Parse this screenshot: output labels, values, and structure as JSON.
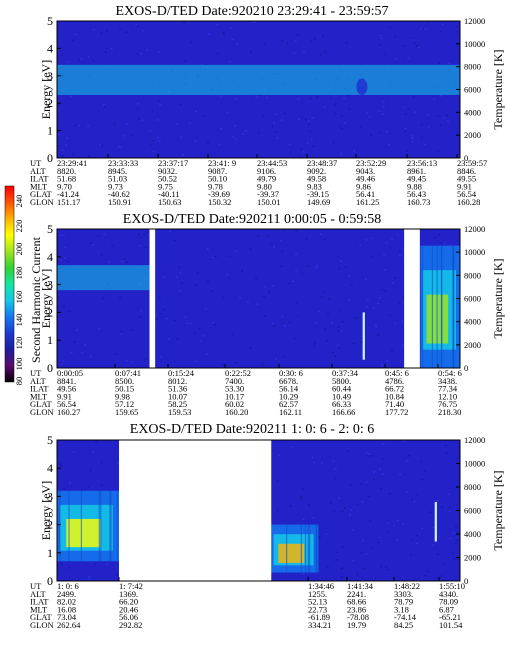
{
  "colors": {
    "background": "#ffffff",
    "spectrogram_base": "#2222c8",
    "data_gap": "#ffffff"
  },
  "colorbar": {
    "label": "Second Harmonic Current",
    "ticks": [
      "240",
      "220",
      "200",
      "180",
      "160",
      "140",
      "120",
      "100",
      "80"
    ],
    "range": [
      80,
      240
    ],
    "colors": [
      "#000000",
      "#5a0a6e",
      "#1e1ea0",
      "#1e3cd2",
      "#1478f0",
      "#14c8e6",
      "#14e6a0",
      "#32d232",
      "#a0e61e",
      "#ffff00",
      "#ffb400",
      "#ff5000",
      "#ff0000"
    ]
  },
  "panels": [
    {
      "title": "EXOS-D/TED   Date:920210  23:29:41 - 23:59:57",
      "ylabel": "Energy [eV]",
      "y2label": "Temperature [K]",
      "yticks": [
        "0",
        "1",
        "2",
        "3",
        "4",
        "5"
      ],
      "y2ticks": [
        "0",
        "2000",
        "4000",
        "6000",
        "8000",
        "10000",
        "12000"
      ],
      "row_labels": [
        "UT",
        "ALT",
        "ILAT",
        "MLT",
        "GLAT",
        "GLON"
      ],
      "columns": [
        [
          "23:29:41",
          "8820.",
          "51.68",
          "9.70",
          "-41.24",
          "151.17"
        ],
        [
          "23:33:33",
          "8945.",
          "51.03",
          "9.73",
          "-40.62",
          "150.91"
        ],
        [
          "23:37:17",
          "9032.",
          "50.52",
          "9.75",
          "-40.11",
          "150.63"
        ],
        [
          "23:41: 9",
          "9087.",
          "50.10",
          "9.78",
          "-39.69",
          "150.32"
        ],
        [
          "23:44:53",
          "9106.",
          "49.79",
          "9.80",
          "-39.37",
          "150.01"
        ],
        [
          "23:48:37",
          "9092.",
          "49.58",
          "9.83",
          "-39.15",
          "149.69"
        ],
        [
          "23:52:29",
          "9043.",
          "49.46",
          "9.86",
          "56.41",
          "161.25"
        ],
        [
          "23:56:13",
          "8961.",
          "49.45",
          "9.88",
          "56.43",
          "160.73"
        ],
        [
          "23:59:57",
          "8846.",
          "49.55",
          "9.91",
          "56.54",
          "160.28"
        ]
      ]
    },
    {
      "title": "EXOS-D/TED   Date:920211  0:00:05 - 0:59:58",
      "ylabel": "Energy [eV]",
      "y2label": "Temperature [K]",
      "yticks": [
        "0",
        "1",
        "2",
        "3",
        "4",
        "5"
      ],
      "y2ticks": [
        "0",
        "2000",
        "4000",
        "6000",
        "8000",
        "10000",
        "12000"
      ],
      "row_labels": [
        "UT",
        "ALT",
        "ILAT",
        "MLT",
        "GLAT",
        "GLON"
      ],
      "columns": [
        [
          "0:00:05",
          "8841.",
          "49.56",
          "9.91",
          "56.54",
          "160.27"
        ],
        [
          "0:07:41",
          "8500.",
          "50.15",
          "9.98",
          "57.12",
          "159.65"
        ],
        [
          "0:15:24",
          "8012.",
          "51.36",
          "10.07",
          "58.25",
          "159.53"
        ],
        [
          "0:22:52",
          "7400.",
          "53.30",
          "10.17",
          "60.02",
          "160.20"
        ],
        [
          "0:30: 6",
          "6678.",
          "56.14",
          "10.29",
          "62.57",
          "162.11"
        ],
        [
          "0:37:34",
          "5800.",
          "60.44",
          "10.49",
          "66.33",
          "166.66"
        ],
        [
          "0:45: 6",
          "4786.",
          "66.72",
          "10.84",
          "71.40",
          "177.72"
        ],
        [
          "0:54: 6",
          "3438.",
          "77.34",
          "12.10",
          "76.75",
          "218.30"
        ]
      ]
    },
    {
      "title": "EXOS-D/TED   Date:920211  1: 0: 6 - 2: 0: 6",
      "ylabel": "Energy [eV]",
      "y2label": "Temperature [K]",
      "yticks": [
        "0",
        "1",
        "2",
        "3",
        "4",
        "5"
      ],
      "y2ticks": [
        "0",
        "2000",
        "4000",
        "6000",
        "8000",
        "10000",
        "12000"
      ],
      "row_labels": [
        "UT",
        "ALT",
        "ILAT",
        "MLT",
        "GLAT",
        "GLON"
      ],
      "columns": [
        [
          "1: 0: 6",
          "2499.",
          "82.02",
          "16.08",
          "73.04",
          "262.64"
        ],
        [
          "1: 7:42",
          "1369.",
          "66.20",
          "20.46",
          "56.06",
          "292.82"
        ],
        [
          "1:34:46",
          "1255.",
          "52.13",
          "22.73",
          "-61.89",
          "334.21"
        ],
        [
          "1:41:34",
          "2241.",
          "68.66",
          "23.86",
          "-78.08",
          "19.79"
        ],
        [
          "1:48:22",
          "3303.",
          "78.79",
          "3.18",
          "-74.14",
          "84.25"
        ],
        [
          "1:55:10",
          "4340.",
          "78.09",
          "6.87",
          "-65.21",
          "101.54"
        ]
      ]
    }
  ],
  "chart_data": [
    {
      "type": "heatmap",
      "title": "EXOS-D/TED   Date:920210  23:29:41 - 23:59:57",
      "xlabel": "UT",
      "ylabel": "Energy [eV]",
      "y2label": "Temperature [K]",
      "ylim": [
        0,
        5
      ],
      "y2lim": [
        0,
        12000
      ],
      "x": [
        "23:29:41",
        "23:33:33",
        "23:37:17",
        "23:41: 9",
        "23:44:53",
        "23:48:37",
        "23:52:29",
        "23:56:13",
        "23:59:57"
      ],
      "colorbar": {
        "label": "Second Harmonic Current",
        "range": [
          80,
          240
        ]
      },
      "data_gaps": [],
      "features": [
        {
          "type": "band",
          "energy": [
            2.3,
            3.4
          ],
          "x_range": [
            "23:29:41",
            "23:59:57"
          ],
          "level": 150
        },
        {
          "type": "spot",
          "energy": [
            2.3,
            2.9
          ],
          "x_range": [
            "23:52:10",
            "23:53:00"
          ],
          "level": 120
        }
      ]
    },
    {
      "type": "heatmap",
      "title": "EXOS-D/TED   Date:920211  0:00:05 - 0:59:58",
      "xlabel": "UT",
      "ylabel": "Energy [eV]",
      "y2label": "Temperature [K]",
      "ylim": [
        0,
        5
      ],
      "y2lim": [
        0,
        12000
      ],
      "x": [
        "0:00:05",
        "0:07:41",
        "0:15:24",
        "0:22:52",
        "0:30: 6",
        "0:37:34",
        "0:45: 6",
        "0:54: 6"
      ],
      "colorbar": {
        "label": "Second Harmonic Current",
        "range": [
          80,
          240
        ]
      },
      "data_gaps": [
        [
          "0:13:50",
          "0:14:40"
        ],
        [
          "0:51:40",
          "0:54:00"
        ]
      ],
      "features": [
        {
          "type": "band",
          "energy": [
            2.8,
            3.7
          ],
          "x_range": [
            "0:00:05",
            "0:13:50"
          ],
          "level": 150
        },
        {
          "type": "line",
          "energy": [
            0.3,
            2.0
          ],
          "x_range": [
            "0:45:30",
            "0:45:50"
          ],
          "level": 170
        },
        {
          "type": "enhancement",
          "energy": [
            0.0,
            4.4
          ],
          "x_range": [
            "0:54:06",
            "0:59:58"
          ],
          "level": 190
        }
      ]
    },
    {
      "type": "heatmap",
      "title": "EXOS-D/TED   Date:920211  1: 0: 6 - 2: 0: 6",
      "xlabel": "UT",
      "ylabel": "Energy [eV]",
      "y2label": "Temperature [K]",
      "ylim": [
        0,
        5
      ],
      "y2lim": [
        0,
        12000
      ],
      "x": [
        "1: 0: 6",
        "1: 7:42",
        "1:34:46",
        "1:41:34",
        "1:48:22",
        "1:55:10"
      ],
      "colorbar": {
        "label": "Second Harmonic Current",
        "range": [
          80,
          240
        ]
      },
      "data_gaps": [
        [
          "1:09:20",
          "1:32:00"
        ]
      ],
      "features": [
        {
          "type": "enhancement",
          "energy": [
            0.7,
            3.2
          ],
          "x_range": [
            "1: 0: 6",
            "1: 9:20"
          ],
          "level": 200
        },
        {
          "type": "enhancement",
          "energy": [
            0.3,
            2.0
          ],
          "x_range": [
            "1:32:00",
            "1:39:00"
          ],
          "level": 210
        },
        {
          "type": "line",
          "energy": [
            1.4,
            2.8
          ],
          "x_range": [
            "1:56:20",
            "1:56:40"
          ],
          "level": 170
        }
      ]
    }
  ]
}
